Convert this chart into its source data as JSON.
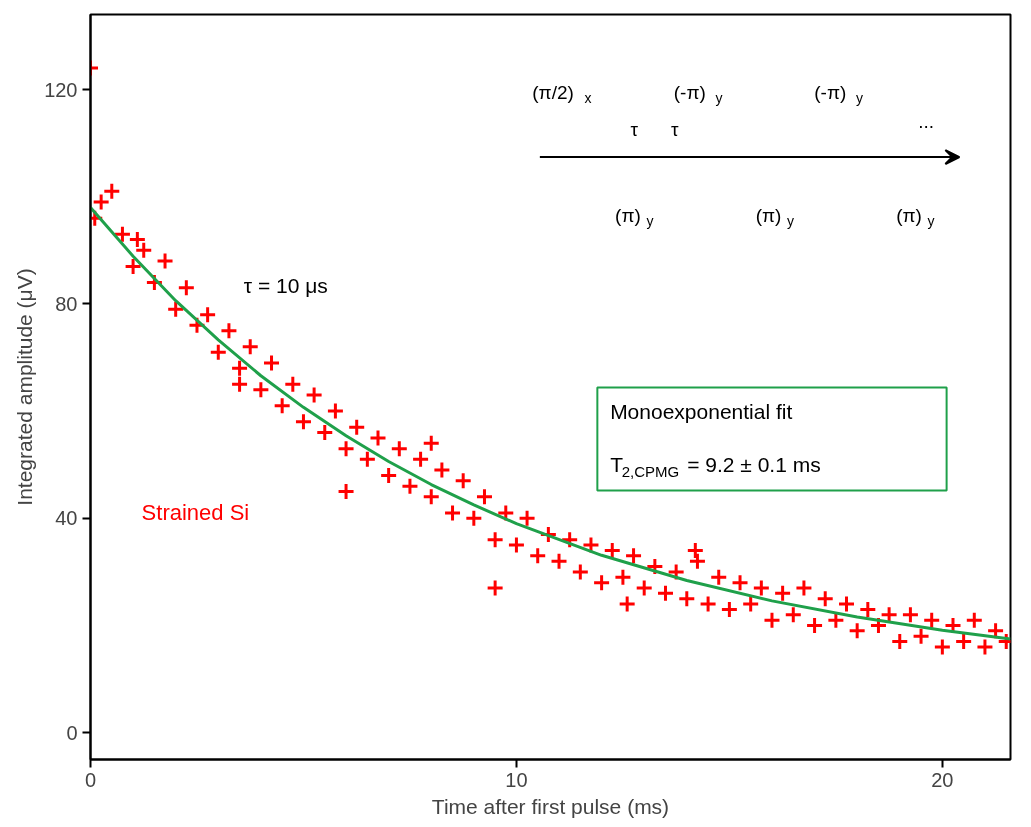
{
  "chart_data": {
    "type": "scatter",
    "xlabel": "Time after first pulse (ms)",
    "ylabel": "Integrated amplitude (μV)",
    "xlim": [
      0,
      21.6
    ],
    "ylim": [
      -5,
      134
    ],
    "xticks": [
      0,
      10,
      20
    ],
    "yticks": [
      0,
      40,
      80,
      120
    ],
    "series": [
      {
        "name": "Strained Si",
        "marker": "cross",
        "color": "#ff0000",
        "x": [
          0,
          0.25,
          0.5,
          0.75,
          1,
          1.25,
          1.5,
          1.75,
          2,
          2.25,
          2.5,
          2.75,
          3,
          3.25,
          3.5,
          3.75,
          4,
          4.25,
          4.5,
          4.75,
          5,
          5.25,
          5.5,
          5.75,
          6,
          6.25,
          6.5,
          6.75,
          7,
          7.25,
          7.5,
          7.75,
          8,
          8.25,
          8.5,
          8.75,
          9,
          9.25,
          9.5,
          9.75,
          10,
          10.25,
          10.5,
          10.75,
          11,
          11.25,
          11.5,
          11.75,
          12,
          12.25,
          12.5,
          12.75,
          13,
          13.25,
          13.5,
          13.75,
          14,
          14.25,
          14.5,
          14.75,
          15,
          15.25,
          15.5,
          15.75,
          16,
          16.25,
          16.5,
          16.75,
          17,
          17.25,
          17.5,
          17.75,
          18,
          18.25,
          18.5,
          18.75,
          19,
          19.25,
          19.5,
          19.75,
          20,
          20.25,
          20.5,
          20.75,
          21,
          21.25,
          21.5,
          8,
          9.5,
          14.2,
          6,
          0.1,
          1.1,
          3.5,
          12.6
        ],
        "values": [
          124,
          99,
          101,
          93,
          87,
          90,
          84,
          88,
          79,
          83,
          76,
          78,
          71,
          75,
          68,
          72,
          64,
          69,
          61,
          65,
          58,
          63,
          56,
          60,
          53,
          57,
          51,
          55,
          48,
          53,
          46,
          51,
          44,
          49,
          41,
          47,
          40,
          44,
          36,
          41,
          35,
          40,
          33,
          37,
          32,
          36,
          30,
          35,
          28,
          34,
          29,
          33,
          27,
          31,
          26,
          30,
          25,
          32,
          24,
          29,
          23,
          28,
          24,
          27,
          21,
          26,
          22,
          27,
          20,
          25,
          21,
          24,
          19,
          23,
          20,
          22,
          17,
          22,
          18,
          21,
          16,
          20,
          17,
          21,
          16,
          19,
          17,
          54,
          27,
          34,
          45,
          96,
          92,
          65,
          24
        ]
      },
      {
        "type": "line",
        "color": "#1fa04a",
        "x": [
          0,
          1,
          2,
          3,
          4,
          5,
          6,
          7,
          8,
          9,
          10,
          12,
          14,
          16,
          18,
          20,
          21.6
        ],
        "values": [
          98,
          88.9,
          80.6,
          73.3,
          66.6,
          60.7,
          55.4,
          50.6,
          46.3,
          42.5,
          39,
          33.1,
          28.4,
          24.6,
          21.6,
          19.1,
          17.5
        ]
      }
    ],
    "annotations": [
      "τ = 10 μs",
      "Monoexponential fit",
      "T$_{2,CPMG}$ = 9.2 ± 0.1 ms",
      "(π/2)$_{x}$",
      "τ",
      "τ",
      "(-π)$_{y}$",
      "(-π)$_{y}$",
      "(π)$_{y}$",
      "(π)$_{y}$",
      "(π)$_{y}$",
      "..."
    ]
  }
}
